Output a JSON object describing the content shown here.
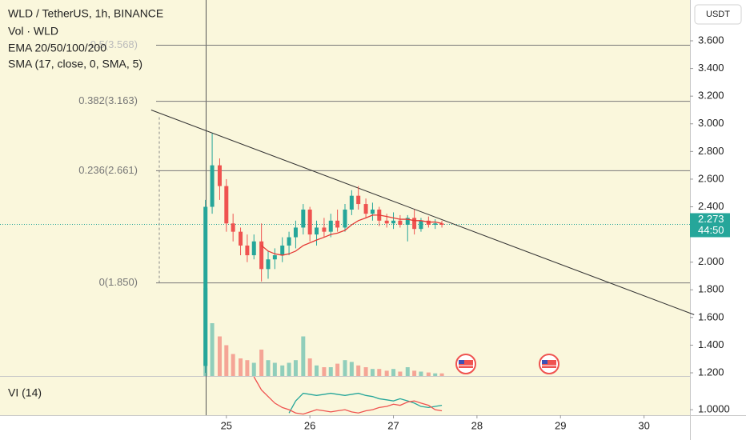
{
  "chart_data": {
    "type": "candlestick",
    "title": "WLD / TetherUS, 1h, BINANCE",
    "legend_lines": [
      "Vol · WLD",
      "EMA 20/50/100/200",
      "SMA (17, close, 0, SMA, 5)"
    ],
    "currency_button": "USDT",
    "x": [
      24.75,
      24.83,
      24.92,
      25.0,
      25.08,
      25.17,
      25.25,
      25.33,
      25.42,
      25.5,
      25.58,
      25.67,
      25.75,
      25.83,
      25.92,
      26.0,
      26.08,
      26.17,
      26.25,
      26.33,
      26.42,
      26.5,
      26.58,
      26.67,
      26.75,
      26.83,
      26.92,
      27.0,
      27.08,
      27.17,
      27.25,
      27.33,
      27.42,
      27.5,
      27.58
    ],
    "open": [
      1.25,
      2.4,
      2.7,
      2.55,
      2.28,
      2.22,
      2.12,
      2.05,
      2.15,
      1.95,
      2.02,
      2.05,
      2.12,
      2.18,
      2.25,
      2.38,
      2.2,
      2.25,
      2.22,
      2.3,
      2.25,
      2.38,
      2.48,
      2.42,
      2.35,
      2.38,
      2.3,
      2.28,
      2.3,
      2.27,
      2.32,
      2.24,
      2.3,
      2.27,
      2.28
    ],
    "high": [
      2.45,
      2.93,
      2.75,
      2.6,
      2.35,
      2.25,
      2.2,
      2.2,
      2.28,
      2.08,
      2.1,
      2.18,
      2.22,
      2.3,
      2.42,
      2.4,
      2.3,
      2.32,
      2.35,
      2.38,
      2.42,
      2.52,
      2.55,
      2.46,
      2.43,
      2.4,
      2.35,
      2.36,
      2.34,
      2.34,
      2.38,
      2.32,
      2.33,
      2.31,
      2.3
    ],
    "low": [
      1.2,
      2.35,
      2.45,
      2.22,
      2.15,
      2.05,
      2.0,
      2.02,
      1.86,
      1.88,
      1.95,
      2.0,
      2.05,
      2.1,
      2.2,
      2.15,
      2.12,
      2.18,
      2.18,
      2.22,
      2.22,
      2.34,
      2.38,
      2.32,
      2.3,
      2.26,
      2.25,
      2.24,
      2.25,
      2.15,
      2.2,
      2.22,
      2.25,
      2.24,
      2.25
    ],
    "close": [
      2.4,
      2.7,
      2.55,
      2.28,
      2.22,
      2.12,
      2.05,
      2.15,
      1.95,
      2.02,
      2.05,
      2.12,
      2.18,
      2.25,
      2.38,
      2.2,
      2.25,
      2.22,
      2.3,
      2.25,
      2.38,
      2.48,
      2.42,
      2.35,
      2.38,
      2.3,
      2.28,
      2.3,
      2.27,
      2.32,
      2.24,
      2.3,
      2.27,
      2.28,
      2.27
    ],
    "volume": [
      100,
      60,
      45,
      35,
      25,
      20,
      18,
      15,
      30,
      18,
      15,
      12,
      15,
      18,
      45,
      20,
      12,
      10,
      10,
      14,
      18,
      16,
      12,
      10,
      8,
      8,
      6,
      8,
      5,
      10,
      6,
      5,
      4,
      3,
      3
    ],
    "ema": {
      "color": "#e53935",
      "values": [
        null,
        null,
        null,
        null,
        null,
        null,
        null,
        null,
        2.12,
        2.08,
        2.06,
        2.05,
        2.06,
        2.08,
        2.12,
        2.14,
        2.16,
        2.18,
        2.2,
        2.21,
        2.23,
        2.27,
        2.3,
        2.32,
        2.34,
        2.34,
        2.33,
        2.32,
        2.31,
        2.31,
        2.3,
        2.3,
        2.29,
        2.29,
        2.28
      ]
    },
    "up_color": "#26a69a",
    "down_color": "#ef5350",
    "xlim": [
      22.29,
      30.55
    ],
    "xticks": [
      25,
      26,
      27,
      28,
      29,
      30
    ],
    "ylim": [
      1.177,
      3.895
    ],
    "yticks": [
      {
        "value": 3.6,
        "label": "3.600"
      },
      {
        "value": 3.4,
        "label": "3.400"
      },
      {
        "value": 3.2,
        "label": "3.200"
      },
      {
        "value": 3.0,
        "label": "3.000"
      },
      {
        "value": 2.8,
        "label": "2.800"
      },
      {
        "value": 2.6,
        "label": "2.600"
      },
      {
        "value": 2.4,
        "label": "2.400"
      },
      {
        "value": 2.0,
        "label": "2.000"
      },
      {
        "value": 1.8,
        "label": "1.800"
      },
      {
        "value": 1.6,
        "label": "1.600"
      },
      {
        "value": 1.4,
        "label": "1.400"
      },
      {
        "value": 1.2,
        "label": "1.200"
      }
    ],
    "last_price": {
      "value": 2.273,
      "label": "2.273",
      "countdown": "44:50"
    },
    "fib_levels": [
      {
        "value": 3.568,
        "label": "0.5(3.568)"
      },
      {
        "value": 3.163,
        "label": "0.382(3.163)"
      },
      {
        "value": 2.661,
        "label": "0.236(2.661)"
      },
      {
        "value": 1.85,
        "label": "0(1.850)"
      }
    ],
    "trendline": {
      "x": [
        24.1,
        30.6
      ],
      "y": [
        3.1,
        1.62
      ]
    },
    "vi": {
      "label": "VI (14)",
      "ylim": [
        0.95,
        1.3
      ],
      "yticks": [
        {
          "value": 1.0,
          "label": "1.0000"
        }
      ],
      "series": [
        {
          "color": "#26a69a",
          "values": [
            null,
            null,
            null,
            null,
            null,
            null,
            null,
            null,
            null,
            null,
            null,
            null,
            0.97,
            1.08,
            1.15,
            1.14,
            1.13,
            1.14,
            1.15,
            1.14,
            1.13,
            1.14,
            1.15,
            1.13,
            1.12,
            1.1,
            1.09,
            1.08,
            1.1,
            1.08,
            1.06,
            1.03,
            1.02,
            1.03,
            1.04
          ]
        },
        {
          "color": "#ef5350",
          "values": [
            null,
            null,
            null,
            null,
            null,
            null,
            null,
            1.3,
            1.18,
            1.12,
            1.06,
            1.02,
            1.0,
            0.97,
            0.96,
            0.98,
            1.0,
            0.99,
            0.98,
            0.99,
            1.0,
            0.98,
            0.97,
            0.99,
            1.0,
            1.02,
            1.03,
            1.05,
            1.04,
            1.07,
            1.08,
            1.06,
            1.04,
            1.0,
            0.99
          ]
        }
      ]
    }
  }
}
